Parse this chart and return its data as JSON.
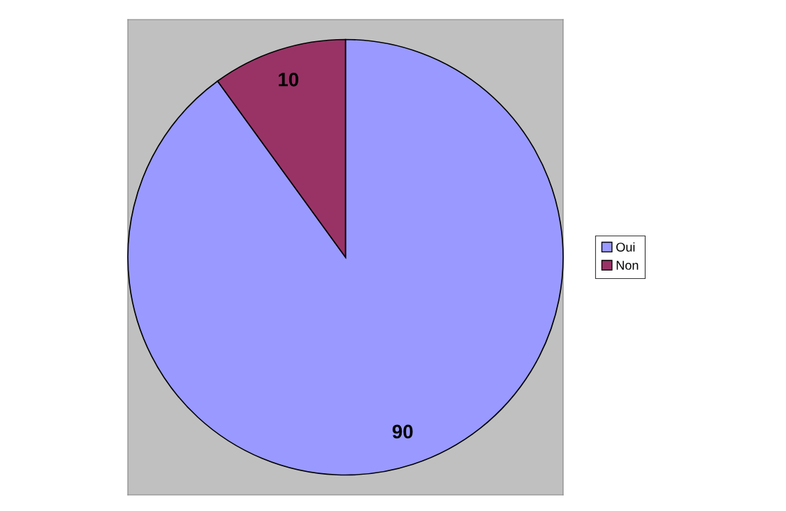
{
  "chart_data": {
    "type": "pie",
    "categories": [
      "Oui",
      "Non"
    ],
    "values": [
      90,
      10
    ],
    "colors": [
      "#9999ff",
      "#993366"
    ],
    "data_labels": true,
    "legend": "right"
  }
}
